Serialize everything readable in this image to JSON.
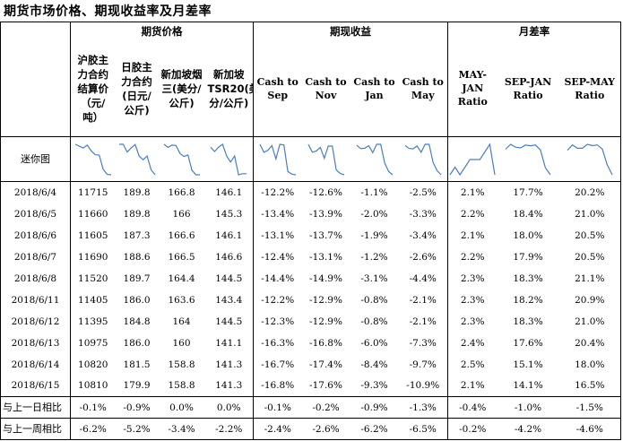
{
  "title": "期货市场价格、期现收益率及月差率",
  "groups": {
    "futures": "期货价格",
    "spot": "期现收益",
    "spread": "月差率"
  },
  "columns": [
    "沪胶主力合约结算价（元/吨）",
    "日胶主力合约(日元/公斤)",
    "新加坡烟三(美分/公斤)",
    "新加坡TSR20(美分/公斤)",
    "Cash to Sep",
    "Cash to Nov",
    "Cash to Jan",
    "Cash to May",
    "MAY-JAN Ratio",
    "SEP-JAN Ratio",
    "SEP-MAY Ratio"
  ],
  "sparkline_label": "迷你图",
  "rows": [
    {
      "date": "2018/6/4",
      "values": [
        "11715",
        "189.8",
        "166.8",
        "146.1",
        "-12.2%",
        "-12.6%",
        "-1.1%",
        "-2.5%",
        "2.1%",
        "17.7%",
        "20.2%"
      ]
    },
    {
      "date": "2018/6/5",
      "values": [
        "11660",
        "189.8",
        "166",
        "145.3",
        "-13.4%",
        "-13.9%",
        "-2.0%",
        "-3.3%",
        "2.2%",
        "18.4%",
        "21.0%"
      ]
    },
    {
      "date": "2018/6/6",
      "values": [
        "11605",
        "187.3",
        "166.6",
        "146.1",
        "-13.1%",
        "-13.7%",
        "-1.9%",
        "-3.4%",
        "2.1%",
        "18.0%",
        "20.5%"
      ]
    },
    {
      "date": "2018/6/7",
      "values": [
        "11690",
        "188.6",
        "166.5",
        "146.6",
        "-12.4%",
        "-13.1%",
        "-1.2%",
        "-2.6%",
        "2.2%",
        "17.9%",
        "20.5%"
      ]
    },
    {
      "date": "2018/6/8",
      "values": [
        "11520",
        "189.7",
        "164.4",
        "144.5",
        "-14.4%",
        "-14.9%",
        "-3.1%",
        "-4.4%",
        "2.3%",
        "18.3%",
        "21.1%"
      ]
    },
    {
      "date": "2018/6/11",
      "values": [
        "11405",
        "186.0",
        "163.6",
        "143.4",
        "-12.2%",
        "-12.9%",
        "-0.8%",
        "-2.1%",
        "2.3%",
        "18.2%",
        "20.9%"
      ]
    },
    {
      "date": "2018/6/12",
      "values": [
        "11395",
        "184.8",
        "164",
        "144.5",
        "-12.3%",
        "-12.9%",
        "-0.8%",
        "-2.1%",
        "2.3%",
        "18.3%",
        "21.0%"
      ]
    },
    {
      "date": "2018/6/13",
      "values": [
        "10975",
        "186.0",
        "160",
        "141.1",
        "-16.3%",
        "-16.8%",
        "-6.0%",
        "-7.3%",
        "2.4%",
        "17.6%",
        "20.4%"
      ]
    },
    {
      "date": "2018/6/14",
      "values": [
        "10820",
        "181.5",
        "158.8",
        "141.3",
        "-16.7%",
        "-17.4%",
        "-8.4%",
        "-9.7%",
        "2.5%",
        "15.1%",
        "18.0%"
      ]
    },
    {
      "date": "2018/6/15",
      "values": [
        "10810",
        "179.9",
        "158.8",
        "141.3",
        "-16.8%",
        "-17.6%",
        "-9.3%",
        "-10.9%",
        "2.1%",
        "14.1%",
        "16.5%"
      ]
    }
  ],
  "summary": [
    {
      "label": "与上一日相比",
      "values": [
        "-0.1%",
        "-0.9%",
        "0.0%",
        "0.0%",
        "-0.1%",
        "-0.2%",
        "-0.9%",
        "-1.3%",
        "-0.4%",
        "-1.0%",
        "-1.5%"
      ]
    },
    {
      "label": "与上一周相比",
      "values": [
        "-6.2%",
        "-5.2%",
        "-3.4%",
        "-2.2%",
        "-2.4%",
        "-2.6%",
        "-6.2%",
        "-6.5%",
        "-0.2%",
        "-4.2%",
        "-4.6%"
      ]
    }
  ],
  "sparkline_color": "#4a7ebb"
}
